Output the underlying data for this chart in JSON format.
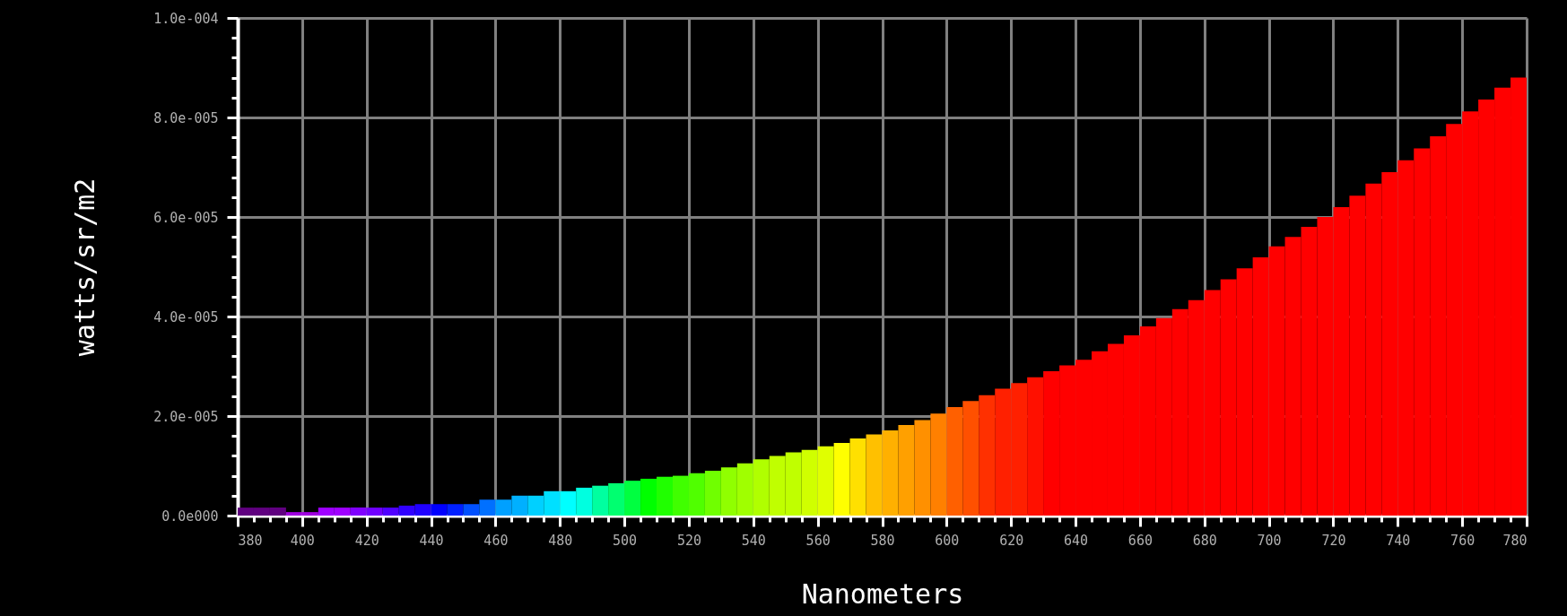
{
  "chart_data": {
    "type": "histogram",
    "xlabel": "Nanometers",
    "ylabel": "watts/sr/m2",
    "bins": [
      380,
      385,
      390,
      395,
      400,
      405,
      410,
      415,
      420,
      425,
      430,
      435,
      440,
      445,
      450,
      455,
      460,
      465,
      470,
      475,
      480,
      485,
      490,
      495,
      500,
      505,
      510,
      515,
      520,
      525,
      530,
      535,
      540,
      545,
      550,
      555,
      560,
      565,
      570,
      575,
      580,
      585,
      590,
      595,
      600,
      605,
      610,
      615,
      620,
      625,
      630,
      635,
      640,
      645,
      650,
      655,
      660,
      665,
      670,
      675,
      680,
      685,
      690,
      695,
      700,
      705,
      710,
      715,
      720,
      725,
      730,
      735,
      740,
      745,
      750,
      755,
      760,
      765,
      770,
      775,
      780
    ],
    "values": [
      1.6e-06,
      1.6e-06,
      1.6e-06,
      7e-07,
      7e-07,
      1.6e-06,
      1.6e-06,
      1.6e-06,
      1.6e-06,
      1.6e-06,
      2e-06,
      2.3e-06,
      2.3e-06,
      2.3e-06,
      2.3e-06,
      3.2e-06,
      3.2e-06,
      4e-06,
      4e-06,
      4.9e-06,
      4.9e-06,
      5.6e-06,
      6e-06,
      6.5e-06,
      7e-06,
      7.4e-06,
      7.8e-06,
      8e-06,
      8.5e-06,
      9e-06,
      9.7e-06,
      1.05e-05,
      1.13e-05,
      1.2e-05,
      1.27e-05,
      1.32e-05,
      1.39e-05,
      1.46e-05,
      1.55e-05,
      1.63e-05,
      1.71e-05,
      1.82e-05,
      1.92e-05,
      2.05e-05,
      2.18e-05,
      2.3e-05,
      2.42e-05,
      2.55e-05,
      2.66e-05,
      2.78e-05,
      2.9e-05,
      3.02e-05,
      3.13e-05,
      3.3e-05,
      3.45e-05,
      3.62e-05,
      3.8e-05,
      3.97e-05,
      4.15e-05,
      4.33e-05,
      4.53e-05,
      4.75e-05,
      4.97e-05,
      5.19e-05,
      5.41e-05,
      5.6e-05,
      5.8e-05,
      6e-05,
      6.2e-05,
      6.43e-05,
      6.67e-05,
      6.9e-05,
      7.14e-05,
      7.38e-05,
      7.62e-05,
      7.87e-05,
      8.12e-05,
      8.36e-05,
      8.6e-05,
      8.8e-05
    ],
    "colors": [
      "#600080",
      "#600080",
      "#600080",
      "#a000e0",
      "#a000e0",
      "#a000ff",
      "#a000ff",
      "#8000ff",
      "#7000ff",
      "#5000ff",
      "#3000ff",
      "#2000ff",
      "#0000ff",
      "#0020ff",
      "#0050ff",
      "#0070ff",
      "#00a0ff",
      "#00b0ff",
      "#00d0ff",
      "#00e0ff",
      "#00ffff",
      "#00ffe0",
      "#00ffa0",
      "#00ff70",
      "#00ff40",
      "#00ff00",
      "#20ff00",
      "#40ff00",
      "#50ff00",
      "#70ff00",
      "#90ff00",
      "#a0ff00",
      "#b0ff00",
      "#c0ff00",
      "#c0ff00",
      "#d0ff00",
      "#e0ff00",
      "#ffff00",
      "#ffe000",
      "#ffc000",
      "#ffb000",
      "#ffa000",
      "#ff9000",
      "#ff8000",
      "#ff6000",
      "#ff5000",
      "#ff3000",
      "#ff2000",
      "#ff2000",
      "#ff1000",
      "#ff0000",
      "#ff0000",
      "#ff0000",
      "#ff0000",
      "#ff0000",
      "#ff0000",
      "#ff0000",
      "#ff0000",
      "#ff0000",
      "#ff0000",
      "#ff0000",
      "#ff0000",
      "#ff0000",
      "#ff0000",
      "#ff0000",
      "#ff0000",
      "#ff0000",
      "#ff0000",
      "#ff0000",
      "#ff0000",
      "#ff0000",
      "#ff0000",
      "#ff0000",
      "#ff0000",
      "#ff0000",
      "#ff0000",
      "#ff0000",
      "#ff0000",
      "#ff0000",
      "#ff0000"
    ],
    "xlim": [
      380,
      780
    ],
    "xticks": [
      380,
      {
        "value": 385,
        "label": null
      },
      {
        "value": 390,
        "label": null
      },
      {
        "value": 395,
        "label": null
      },
      400,
      {
        "value": 405,
        "label": null
      },
      {
        "value": 410,
        "label": null
      },
      {
        "value": 415,
        "label": null
      },
      420,
      {
        "value": 425,
        "label": null
      },
      {
        "value": 430,
        "label": null
      },
      {
        "value": 435,
        "label": null
      },
      440,
      {
        "value": 445,
        "label": null
      },
      {
        "value": 450,
        "label": null
      },
      {
        "value": 455,
        "label": null
      },
      460,
      {
        "value": 465,
        "label": null
      },
      {
        "value": 470,
        "label": null
      },
      {
        "value": 475,
        "label": null
      },
      480,
      {
        "value": 485,
        "label": null
      },
      {
        "value": 490,
        "label": null
      },
      {
        "value": 495,
        "label": null
      },
      500,
      {
        "value": 505,
        "label": null
      },
      {
        "value": 510,
        "label": null
      },
      {
        "value": 515,
        "label": null
      },
      520,
      {
        "value": 525,
        "label": null
      },
      {
        "value": 530,
        "label": null
      },
      {
        "value": 535,
        "label": null
      },
      540,
      {
        "value": 545,
        "label": null
      },
      {
        "value": 550,
        "label": null
      },
      {
        "value": 555,
        "label": null
      },
      560,
      {
        "value": 565,
        "label": null
      },
      {
        "value": 570,
        "label": null
      },
      {
        "value": 575,
        "label": null
      },
      580,
      {
        "value": 585,
        "label": null
      },
      {
        "value": 590,
        "label": null
      },
      {
        "value": 595,
        "label": null
      },
      600,
      {
        "value": 605,
        "label": null
      },
      {
        "value": 610,
        "label": null
      },
      {
        "value": 615,
        "label": null
      },
      620,
      {
        "value": 625,
        "label": null
      },
      {
        "value": 630,
        "label": null
      },
      {
        "value": 635,
        "label": null
      },
      640,
      {
        "value": 645,
        "label": null
      },
      {
        "value": 650,
        "label": null
      },
      {
        "value": 655,
        "label": null
      },
      660,
      {
        "value": 665,
        "label": null
      },
      {
        "value": 670,
        "label": null
      },
      {
        "value": 675,
        "label": null
      },
      680,
      {
        "value": 685,
        "label": null
      },
      {
        "value": 690,
        "label": null
      },
      {
        "value": 695,
        "label": null
      },
      700,
      {
        "value": 705,
        "label": null
      },
      {
        "value": 710,
        "label": null
      },
      {
        "value": 715,
        "label": null
      },
      720,
      {
        "value": 725,
        "label": null
      },
      {
        "value": 730,
        "label": null
      },
      {
        "value": 735,
        "label": null
      },
      740,
      {
        "value": 745,
        "label": null
      },
      {
        "value": 750,
        "label": null
      },
      {
        "value": 755,
        "label": null
      },
      760,
      {
        "value": 765,
        "label": null
      },
      {
        "value": 770,
        "label": null
      },
      {
        "value": 775,
        "label": null
      },
      780
    ],
    "ylim": [
      0,
      0.0001
    ],
    "yticks": [
      {
        "value": 0,
        "label": "0.0e000"
      },
      {
        "value": 4e-06,
        "label": null
      },
      {
        "value": 8e-06,
        "label": null
      },
      {
        "value": 1.2e-05,
        "label": null
      },
      {
        "value": 1.6e-05,
        "label": null
      },
      {
        "value": 2e-05,
        "label": "2.0e-005"
      },
      {
        "value": 2.4e-05,
        "label": null
      },
      {
        "value": 2.8e-05,
        "label": null
      },
      {
        "value": 3.2e-05,
        "label": null
      },
      {
        "value": 3.6e-05,
        "label": null
      },
      {
        "value": 4e-05,
        "label": "4.0e-005"
      },
      {
        "value": 4.4e-05,
        "label": null
      },
      {
        "value": 4.8e-05,
        "label": null
      },
      {
        "value": 5.2e-05,
        "label": null
      },
      {
        "value": 5.6e-05,
        "label": null
      },
      {
        "value": 6e-05,
        "label": "6.0e-005"
      },
      {
        "value": 6.4e-05,
        "label": null
      },
      {
        "value": 6.8e-05,
        "label": null
      },
      {
        "value": 7.2e-05,
        "label": null
      },
      {
        "value": 7.6e-05,
        "label": null
      },
      {
        "value": 8e-05,
        "label": "8.0e-005"
      },
      {
        "value": 8.4e-05,
        "label": null
      },
      {
        "value": 8.8e-05,
        "label": null
      },
      {
        "value": 9.2e-05,
        "label": null
      },
      {
        "value": 9.6e-05,
        "label": null
      },
      {
        "value": 0.0001,
        "label": "1.0e-004"
      }
    ],
    "grid": true
  }
}
